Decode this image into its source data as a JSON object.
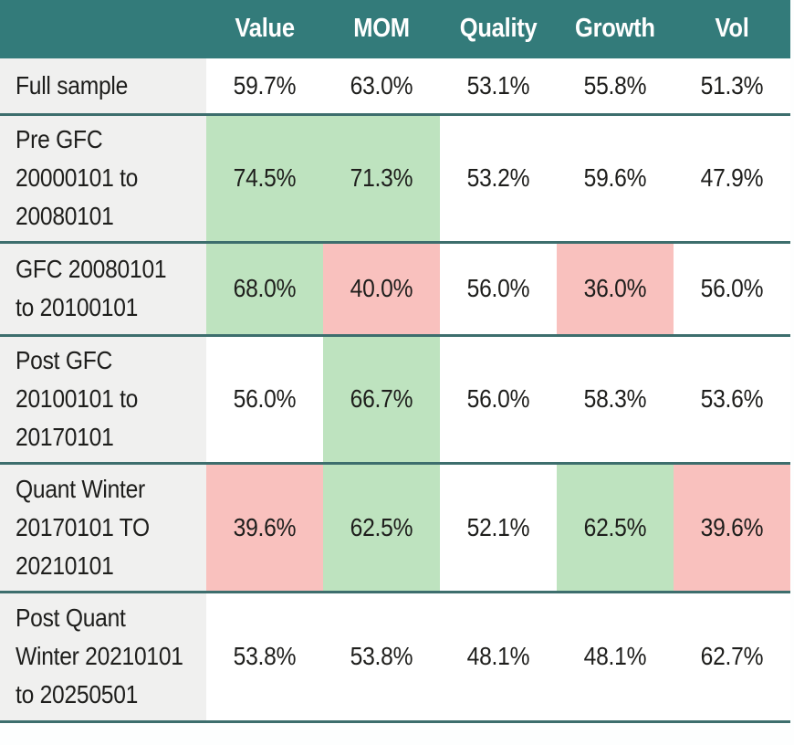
{
  "chart_data": {
    "type": "table",
    "unit": "%",
    "columns": [
      "Value",
      "MOM",
      "Quality",
      "Growth",
      "Vol"
    ],
    "rows": [
      {
        "label": "Full sample",
        "values": [
          "59.7%",
          "63.0%",
          "53.1%",
          "55.8%",
          "51.3%"
        ],
        "highlights": [
          null,
          null,
          null,
          null,
          null
        ]
      },
      {
        "label": "Pre GFC\n20000101 to\n20080101",
        "values": [
          "74.5%",
          "71.3%",
          "53.2%",
          "59.6%",
          "47.9%"
        ],
        "highlights": [
          "green",
          "green",
          null,
          null,
          null
        ]
      },
      {
        "label": "GFC 20080101\nto 20100101",
        "values": [
          "68.0%",
          "40.0%",
          "56.0%",
          "36.0%",
          "56.0%"
        ],
        "highlights": [
          "green",
          "red",
          null,
          "red",
          null
        ]
      },
      {
        "label": "Post GFC\n20100101 to\n20170101",
        "values": [
          "56.0%",
          "66.7%",
          "56.0%",
          "58.3%",
          "53.6%"
        ],
        "highlights": [
          null,
          "green",
          null,
          null,
          null
        ]
      },
      {
        "label": "Quant Winter\n20170101 TO\n20210101",
        "values": [
          "39.6%",
          "62.5%",
          "52.1%",
          "62.5%",
          "39.6%"
        ],
        "highlights": [
          "red",
          "green",
          null,
          "green",
          "red"
        ]
      },
      {
        "label": "Post Quant\nWinter 20210101\nto 20250501",
        "values": [
          "53.8%",
          "53.8%",
          "48.1%",
          "48.1%",
          "62.7%"
        ],
        "highlights": [
          null,
          null,
          null,
          null,
          null
        ]
      }
    ],
    "colors": {
      "header_bg": "#337B7A",
      "header_text": "#FFFFFF",
      "row_divider": "#3D6E6D",
      "label_cell_bg": "#F0F0EF",
      "value_cell_bg": "#FFFFFF",
      "highlight_green": "#BEE3BF",
      "highlight_red": "#F9C1BE",
      "body_text": "#1E1E1C"
    }
  }
}
